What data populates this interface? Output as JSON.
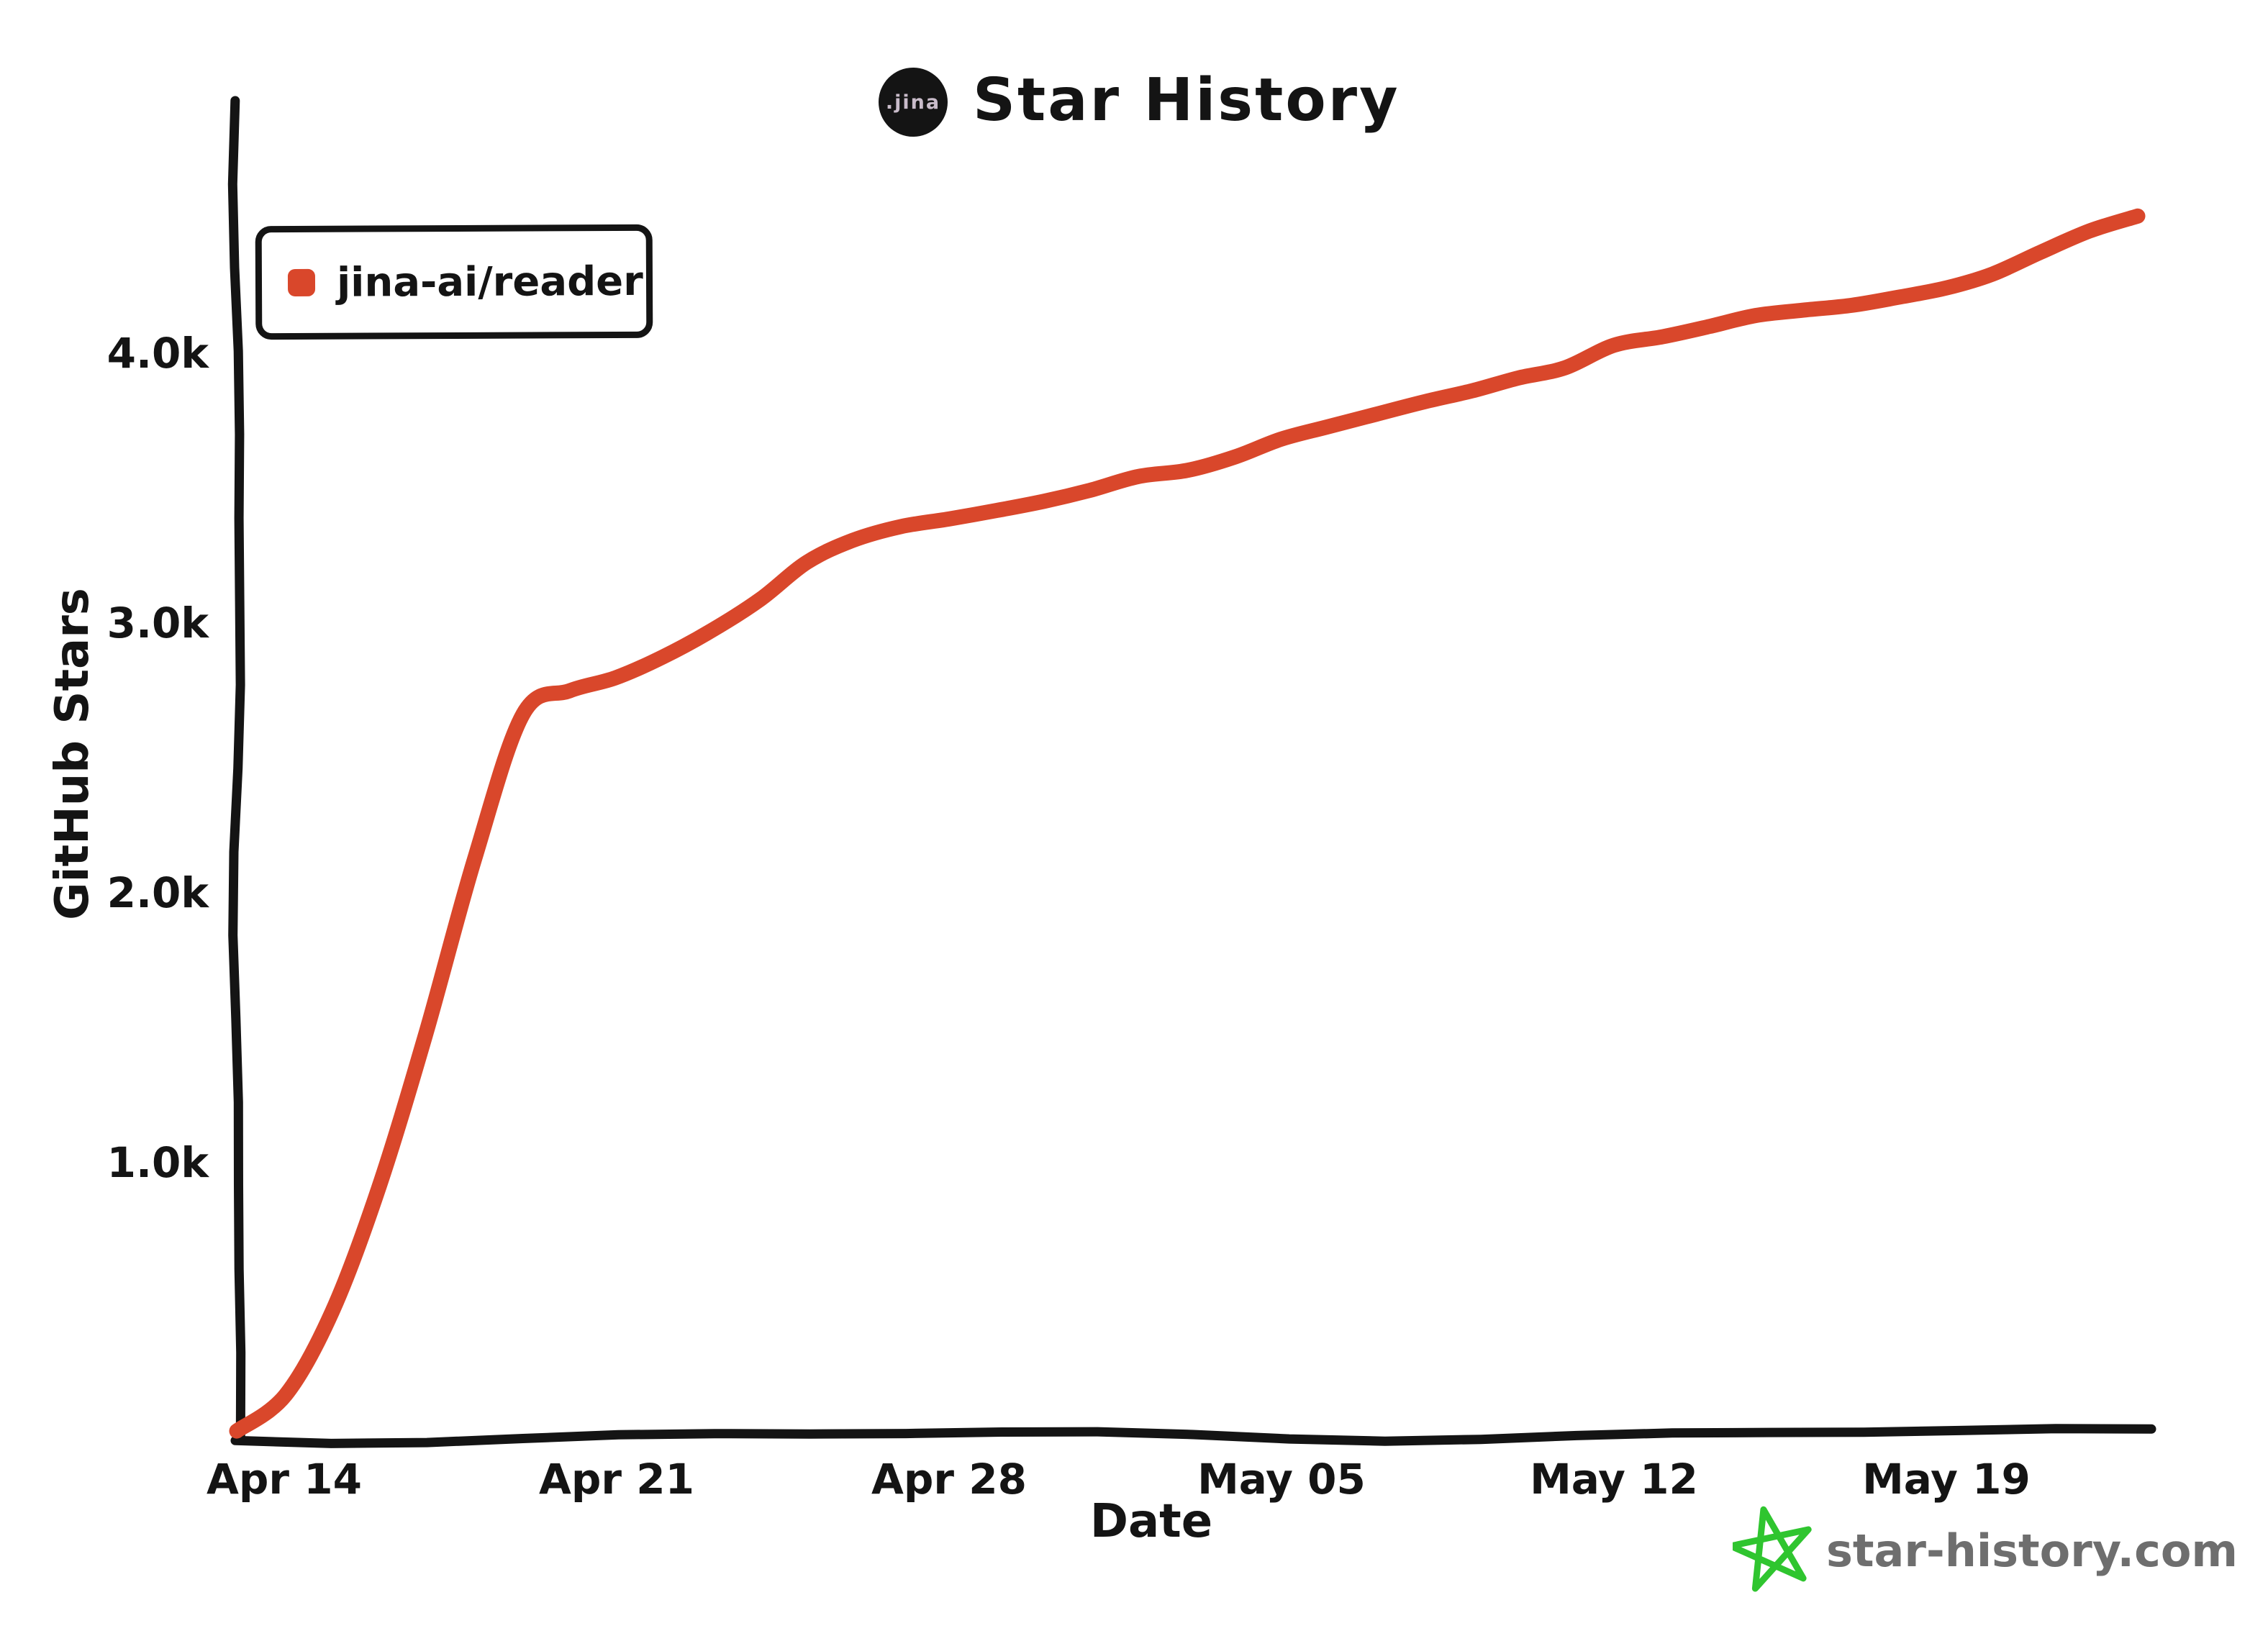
{
  "header": {
    "title": "Star History",
    "logo_text": ".jina"
  },
  "legend": {
    "series_label": "jina-ai/reader",
    "marker_color": "#d9472b"
  },
  "y_axis": {
    "title": "GitHub Stars",
    "ticks": [
      {
        "label": "1.0k",
        "value": 1000
      },
      {
        "label": "2.0k",
        "value": 2000
      },
      {
        "label": "3.0k",
        "value": 3000
      },
      {
        "label": "4.0k",
        "value": 4000
      }
    ]
  },
  "x_axis": {
    "title": "Date",
    "ticks": [
      {
        "label": "Apr 14",
        "day": 1
      },
      {
        "label": "Apr 21",
        "day": 8
      },
      {
        "label": "Apr 28",
        "day": 15
      },
      {
        "label": "May 05",
        "day": 22
      },
      {
        "label": "May 12",
        "day": 29
      },
      {
        "label": "May 19",
        "day": 36
      }
    ]
  },
  "watermark": {
    "text": "star-history.com",
    "star_color": "#2fc52f",
    "text_color": "#6e6e6e"
  },
  "chart_data": {
    "type": "line",
    "title": "Star History",
    "xlabel": "Date",
    "ylabel": "GitHub Stars",
    "style": "xkcd-hand-drawn",
    "grid": false,
    "legend_position": "top-left",
    "ylim": [
      0,
      4800
    ],
    "y_tick_values": [
      1000,
      2000,
      3000,
      4000
    ],
    "x_tick_labels": [
      "Apr 14",
      "Apr 21",
      "Apr 28",
      "May 05",
      "May 12",
      "May 19"
    ],
    "series": [
      {
        "name": "jina-ai/reader",
        "color": "#d9472b",
        "x": [
          "Apr 13",
          "Apr 14",
          "Apr 15",
          "Apr 16",
          "Apr 17",
          "Apr 18",
          "Apr 19",
          "Apr 20",
          "Apr 21",
          "Apr 22",
          "Apr 23",
          "Apr 24",
          "Apr 25",
          "Apr 26",
          "Apr 27",
          "Apr 28",
          "Apr 29",
          "Apr 30",
          "May 01",
          "May 02",
          "May 03",
          "May 04",
          "May 05",
          "May 06",
          "May 07",
          "May 08",
          "May 09",
          "May 10",
          "May 11",
          "May 12",
          "May 13",
          "May 14",
          "May 15",
          "May 16",
          "May 17",
          "May 18",
          "May 19",
          "May 20",
          "May 21",
          "May 22",
          "May 23"
        ],
        "values": [
          5,
          150,
          450,
          900,
          1480,
          2120,
          2650,
          2750,
          2800,
          2870,
          2980,
          3100,
          3220,
          3300,
          3360,
          3380,
          3410,
          3460,
          3500,
          3540,
          3570,
          3620,
          3670,
          3720,
          3780,
          3820,
          3860,
          3920,
          3950,
          4020,
          4060,
          4100,
          4130,
          4160,
          4190,
          4210,
          4240,
          4300,
          4370,
          4440,
          4510
        ]
      }
    ]
  }
}
